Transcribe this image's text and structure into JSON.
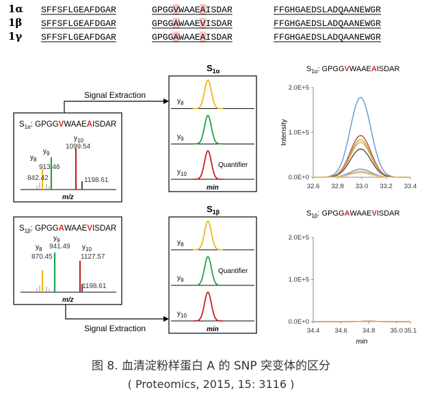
{
  "sequences": [
    {
      "id": "1α",
      "segments": [
        {
          "text": "SFFSFLGEAFDGAR",
          "hl": []
        },
        {
          "text": "GPGGVWAAEAISDAR",
          "hl": [
            4,
            9
          ]
        },
        {
          "text": "FFGHGAEDSLADQAANEWGR",
          "hl": []
        }
      ]
    },
    {
      "id": "1β",
      "segments": [
        {
          "text": "SFFSFLGEAFDGAR",
          "hl": []
        },
        {
          "text": "GPGGAWAAEVISDAR",
          "hl": [
            4,
            9
          ]
        },
        {
          "text": "FFGHGAEDSLADQAANEWGR",
          "hl": []
        }
      ]
    },
    {
      "id": "1γ",
      "segments": [
        {
          "text": "SFFSFLGEAFDGAR",
          "hl": []
        },
        {
          "text": "GPGGAWAAEAISDAR",
          "hl": [
            4,
            9
          ]
        },
        {
          "text": "FFGHGAEDSLADQAANEWGR",
          "hl": []
        }
      ]
    }
  ],
  "signal_extraction_label": "Signal Extraction",
  "spectra": [
    {
      "label_main": "S",
      "label_sub": "1α",
      "peptide": [
        {
          "t": "GPGG",
          "hl": false
        },
        {
          "t": "V",
          "hl": true
        },
        {
          "t": "WAAE",
          "hl": false
        },
        {
          "t": "A",
          "hl": true
        },
        {
          "t": "ISDAR",
          "hl": false
        }
      ],
      "peaks": [
        {
          "name": "y",
          "sub": "8",
          "mz": "842.42",
          "color": "#f2b51c"
        },
        {
          "name": "y",
          "sub": "9",
          "mz": "913.46",
          "color": "#22a04a"
        },
        {
          "name": "y",
          "sub": "10",
          "mz": "1099.54",
          "color": "#c42020"
        },
        {
          "mz": "1198.61",
          "color": "#555555"
        }
      ],
      "xlabel": "m/z"
    },
    {
      "label_main": "S",
      "label_sub": "1β",
      "peptide": [
        {
          "t": "GPGG",
          "hl": false
        },
        {
          "t": "A",
          "hl": true
        },
        {
          "t": "WAAE",
          "hl": false
        },
        {
          "t": "V",
          "hl": true
        },
        {
          "t": "ISDAR",
          "hl": false
        }
      ],
      "peaks": [
        {
          "name": "y",
          "sub": "8",
          "mz": "870.45",
          "color": "#f2b51c"
        },
        {
          "name": "y",
          "sub": "9",
          "mz": "941.49",
          "color": "#22a04a"
        },
        {
          "name": "y",
          "sub": "10",
          "mz": "1127.57",
          "color": "#c42020"
        },
        {
          "mz": "1198.61",
          "color": "#555555"
        }
      ],
      "xlabel": "m/z"
    }
  ],
  "xic_panels": [
    {
      "title_main": "S",
      "title_sub": "1α",
      "rows": [
        {
          "name": "y",
          "sub": "8",
          "color": "#f2b51c",
          "quantifier": false
        },
        {
          "name": "y",
          "sub": "9",
          "color": "#22a04a",
          "quantifier": false
        },
        {
          "name": "y",
          "sub": "10",
          "color": "#c42020",
          "quantifier": true
        }
      ],
      "quantifier_label": "Quantifier",
      "xlabel": "min"
    },
    {
      "title_main": "S",
      "title_sub": "1β",
      "rows": [
        {
          "name": "y",
          "sub": "8",
          "color": "#f2b51c",
          "quantifier": false
        },
        {
          "name": "y",
          "sub": "9",
          "color": "#22a04a",
          "quantifier": true
        },
        {
          "name": "y",
          "sub": "10",
          "color": "#c42020",
          "quantifier": false
        }
      ],
      "quantifier_label": "Quantifier",
      "xlabel": "min"
    }
  ],
  "chart_data": [
    {
      "type": "line",
      "title_main": "S",
      "title_sub": "1α",
      "title_peptide": [
        {
          "t": ": GPGG",
          "hl": false
        },
        {
          "t": "V",
          "hl": true
        },
        {
          "t": "WAAE",
          "hl": false
        },
        {
          "t": "A",
          "hl": true
        },
        {
          "t": "ISDAR",
          "hl": false
        }
      ],
      "ylabel": "Intensity",
      "xlabel": "",
      "xlim": [
        32.6,
        33.4
      ],
      "ylim": [
        0,
        200000
      ],
      "xticks": [
        "32.6",
        "32.8",
        "33.0",
        "33.2",
        "33.4"
      ],
      "yticks": [
        "0.0E+0",
        "1.0E+5",
        "2.0E+5"
      ],
      "peak_center": 32.99,
      "peak_width": 0.085,
      "series": [
        {
          "color": "#6a9bd6",
          "peak": 178000
        },
        {
          "color": "#c0504d",
          "peak": 93000
        },
        {
          "color": "#9bbb59",
          "peak": 84000
        },
        {
          "color": "#f79646",
          "peak": 78000
        },
        {
          "color": "#555555",
          "peak": 63000
        },
        {
          "color": "#4bacc6",
          "peak": 18000
        },
        {
          "color": "#e8a0a0",
          "peak": 13000
        },
        {
          "color": "#f2c34f",
          "peak": 10000
        }
      ]
    },
    {
      "type": "line",
      "title_main": "S",
      "title_sub": "1β",
      "title_peptide": [
        {
          "t": ": GPGG",
          "hl": false
        },
        {
          "t": "A",
          "hl": true
        },
        {
          "t": "WAAE",
          "hl": false
        },
        {
          "t": "V",
          "hl": true
        },
        {
          "t": "ISDAR",
          "hl": false
        }
      ],
      "ylabel": "",
      "xlabel": "min",
      "xlim": [
        34.4,
        35.1
      ],
      "ylim": [
        0,
        200000
      ],
      "xticks": [
        "34.4",
        "34.6",
        "34.8",
        "35.0",
        "35.1"
      ],
      "xtick_values": [
        34.4,
        34.6,
        34.8,
        35.0,
        35.1
      ],
      "yticks": [
        "0.0E+0",
        "1.0E+5",
        "2.0E+5"
      ],
      "peak_center": 34.8,
      "peak_width": 0.05,
      "series": [
        {
          "color": "#c0504d",
          "peak": 1200
        },
        {
          "color": "#f79646",
          "peak": 800
        }
      ]
    }
  ],
  "caption": {
    "line1": "图 8. 血清淀粉样蛋白 A 的 SNP 突变体的区分",
    "line2": "( Proteomics, 2015, 15: 3116 )"
  }
}
